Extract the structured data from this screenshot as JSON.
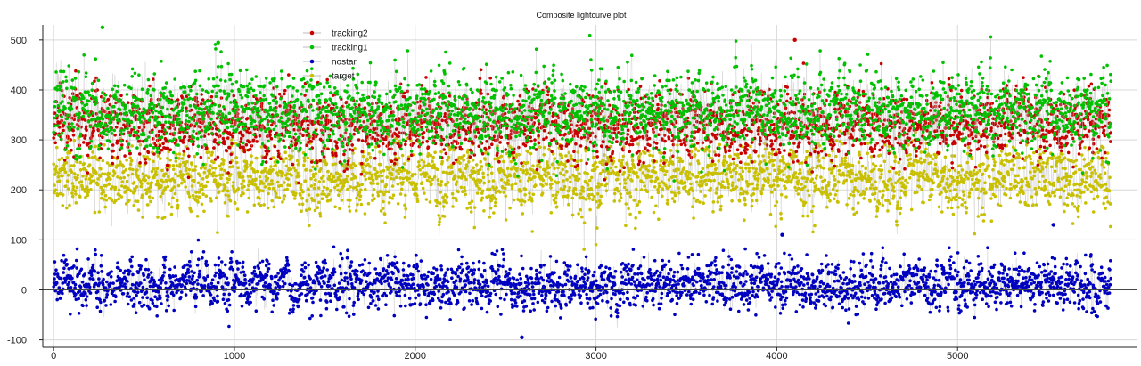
{
  "chart_data": {
    "type": "line",
    "title": "Composite lightcurve plot",
    "xlabel": "",
    "ylabel": "",
    "xlim": [
      -60,
      5990
    ],
    "ylim": [
      -115,
      530
    ],
    "x_ticks": [
      0,
      1000,
      2000,
      3000,
      4000,
      5000
    ],
    "y_ticks": [
      -100,
      0,
      100,
      200,
      300,
      400,
      500
    ],
    "grid": true,
    "legend_position": "top-center",
    "n_points": 5850,
    "series": [
      {
        "name": "tracking2",
        "color": "#c80000",
        "mean": 330,
        "sd": 38,
        "bands": [
          [
            0,
            6000,
            360,
            440
          ],
          [
            0,
            6000,
            240,
            300
          ]
        ]
      },
      {
        "name": "tracking1",
        "color": "#00c000",
        "mean": 355,
        "sd": 45,
        "bands": [
          [
            0,
            6000,
            420,
            470
          ]
        ]
      },
      {
        "name": "nostar",
        "color": "#0000c0",
        "mean": 10,
        "sd": 28,
        "bands": [
          [
            0,
            6000,
            -50,
            60
          ]
        ]
      },
      {
        "name": "target",
        "color": "#c8c000",
        "mean": 225,
        "sd": 38,
        "bands": [
          [
            0,
            6000,
            150,
            280
          ]
        ]
      }
    ],
    "notable_points": [
      {
        "series": "tracking1",
        "x": 270,
        "y": 525
      },
      {
        "series": "tracking1",
        "x": 910,
        "y": 495
      },
      {
        "series": "tracking2",
        "x": 4100,
        "y": 500
      },
      {
        "series": "nostar",
        "x": 2590,
        "y": -95
      },
      {
        "series": "nostar",
        "x": 4030,
        "y": 110
      },
      {
        "series": "nostar",
        "x": 5530,
        "y": 130
      }
    ]
  }
}
